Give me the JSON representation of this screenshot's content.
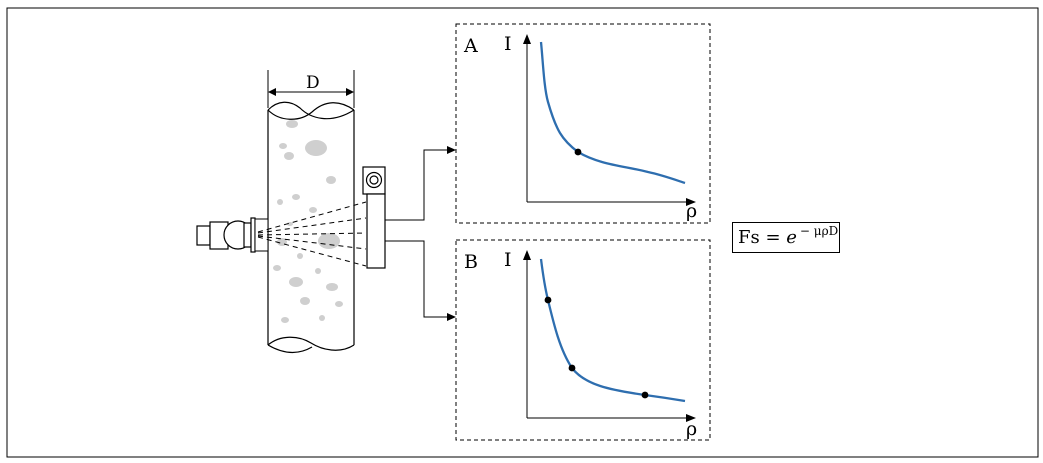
{
  "source_diagram": {
    "width_label": "D"
  },
  "panel_a": {
    "label": "A",
    "y_axis_label": "I",
    "x_axis_label": "ρ"
  },
  "panel_b": {
    "label": "B",
    "y_axis_label": "I",
    "x_axis_label": "ρ"
  },
  "formula": {
    "lhs": "Fs = ",
    "base": "e",
    "exponent": "− μρD"
  },
  "colors": {
    "curve": "#2E6EAF",
    "grain": "#CFCFCF",
    "line": "#000000"
  }
}
